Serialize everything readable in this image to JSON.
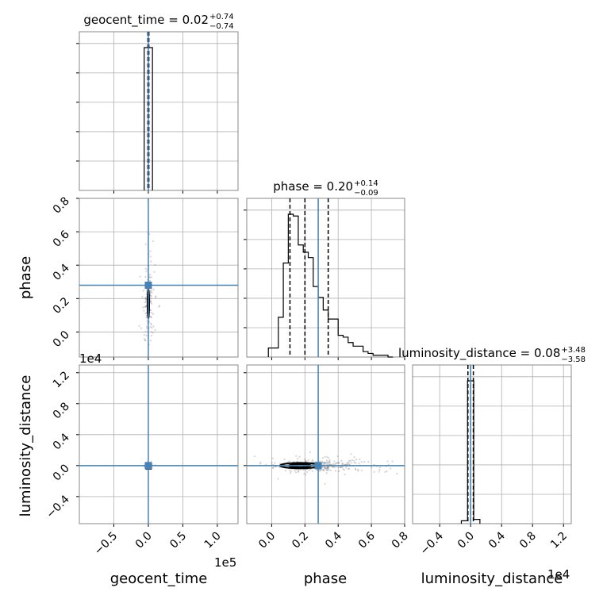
{
  "chart_data": {
    "type": "corner",
    "parameters": [
      "geocent_time",
      "phase",
      "luminosity_distance"
    ],
    "titles": [
      {
        "param": "geocent_time",
        "label": "geocent_time = 0.02",
        "plus": "+0.74",
        "minus": "−0.74"
      },
      {
        "param": "phase",
        "label": "phase = 0.20",
        "plus": "+0.14",
        "minus": "−0.09"
      },
      {
        "param": "luminosity_distance",
        "label": "luminosity_distance = 0.08",
        "plus": "+3.48",
        "minus": "−3.58"
      }
    ],
    "axis_labels": {
      "x": [
        "geocent_time",
        "phase",
        "luminosity_distance"
      ],
      "y": [
        "phase",
        "luminosity_distance"
      ]
    },
    "offset_texts": {
      "geocent_time_x": "1e5",
      "luminosity_distance_x": "1e4",
      "luminosity_distance_y": "1e4"
    },
    "ranges": {
      "geocent_time": [
        -1.0,
        1.3
      ],
      "phase": [
        -0.15,
        0.8
      ],
      "luminosity_distance": [
        -0.75,
        1.3
      ]
    },
    "ticks": {
      "geocent_time": {
        "values": [
          -0.5,
          0.0,
          0.5,
          1.0
        ],
        "labels": [
          "−0.5",
          "0.0",
          "0.5",
          "1.0"
        ]
      },
      "phase_x": {
        "values": [
          0.0,
          0.2,
          0.4,
          0.6,
          0.8
        ],
        "labels": [
          "0.0",
          "0.2",
          "0.4",
          "0.6",
          "0.8"
        ]
      },
      "phase_y": {
        "values": [
          0.0,
          0.2,
          0.4,
          0.6,
          0.8
        ],
        "labels": [
          "0.0",
          "0.2",
          "0.4",
          "0.6",
          "0.8"
        ]
      },
      "luminosity_distance_x": {
        "values": [
          -0.4,
          0.0,
          0.4,
          0.8,
          1.2
        ],
        "labels": [
          "−0.4",
          "0.0",
          "0.4",
          "0.8",
          "1.2"
        ]
      },
      "luminosity_distance_y": {
        "values": [
          -0.4,
          0.0,
          0.4,
          0.8,
          1.2
        ],
        "labels": [
          "−0.4",
          "0.0",
          "0.4",
          "0.8",
          "1.2"
        ]
      }
    },
    "truth": {
      "geocent_time": 0.0,
      "phase": 0.28,
      "luminosity_distance": 0.0
    },
    "quantiles": {
      "geocent_time": [
        -0.0072,
        0.0002,
        0.0076
      ],
      "phase": [
        0.11,
        0.2,
        0.34
      ],
      "luminosity_distance": [
        -0.035,
        0.0008,
        0.035
      ]
    },
    "histograms": {
      "geocent_time": {
        "edges": [
          -0.06,
          0.0,
          0.06
        ],
        "counts": [
          1.0,
          1.0
        ]
      },
      "phase": {
        "edges": [
          -0.02,
          0.01,
          0.04,
          0.07,
          0.1,
          0.13,
          0.16,
          0.19,
          0.22,
          0.25,
          0.28,
          0.31,
          0.34,
          0.37,
          0.4,
          0.43,
          0.46,
          0.49,
          0.52,
          0.55,
          0.58,
          0.61,
          0.64,
          0.67,
          0.7,
          0.73
        ],
        "counts": [
          0.05,
          0.05,
          0.22,
          0.52,
          0.79,
          0.78,
          0.62,
          0.58,
          0.55,
          0.39,
          0.33,
          0.26,
          0.21,
          0.21,
          0.12,
          0.11,
          0.08,
          0.06,
          0.06,
          0.03,
          0.02,
          0.01,
          0.01,
          0.01,
          0.0
        ]
      },
      "luminosity_distance": {
        "edges": [
          -0.12,
          -0.04,
          0.0,
          0.04,
          0.12
        ],
        "counts": [
          0.02,
          1.0,
          1.0,
          0.03
        ]
      }
    },
    "colors": {
      "truth": "#4682b4",
      "hist": "#000000",
      "quantile": "#000000",
      "grid": "#b0b0b0",
      "samples": "#888888"
    },
    "grid": true
  }
}
